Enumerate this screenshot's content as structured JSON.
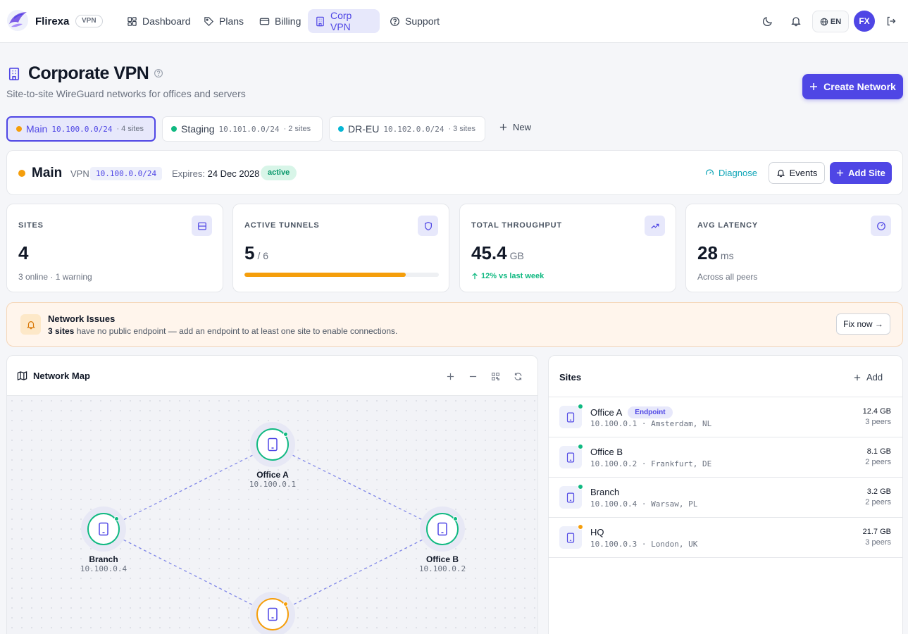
{
  "nav": {
    "brand": "Flirexa",
    "brand_badge": "VPN",
    "items": [
      {
        "label": "Dashboard",
        "icon": "dashboard-icon"
      },
      {
        "label": "Plans",
        "icon": "tag-icon"
      },
      {
        "label": "Billing",
        "icon": "card-icon"
      },
      {
        "label": "Corp VPN",
        "icon": "building-icon",
        "active": true
      },
      {
        "label": "Support",
        "icon": "help-circle-icon"
      }
    ],
    "lang": "EN",
    "avatar": "FX"
  },
  "header": {
    "title": "Corporate VPN",
    "subtitle": "Site-to-site WireGuard networks for offices and servers",
    "create_button": "Create Network"
  },
  "network_tabs": [
    {
      "name": "Main",
      "cidr": "10.100.0.0/24",
      "count": "· 4 sites",
      "color": "#f59e0b"
    },
    {
      "name": "Staging",
      "cidr": "10.101.0.0/24",
      "count": "· 2 sites",
      "color": "#10b981"
    },
    {
      "name": "DR-EU",
      "cidr": "10.102.0.0/24",
      "count": "· 3 sites",
      "color": "#06b6d4"
    }
  ],
  "new_tab_label": "New",
  "network": {
    "name": "Main",
    "vpn_label": "VPN:",
    "vpn_cidr": "10.100.0.0/24",
    "expires_label": "Expires:",
    "expires_value": "24 Dec 2028",
    "status": "active",
    "diagnose": "Diagnose",
    "events": "Events",
    "add_site": "Add Site"
  },
  "stats": {
    "sites": {
      "label": "SITES",
      "value": "4",
      "foot": "3 online · 1 warning"
    },
    "tunnels": {
      "label": "ACTIVE TUNNELS",
      "value": "5",
      "unit": "/ 6",
      "progress": 0.83
    },
    "throughput": {
      "label": "TOTAL THROUGHPUT",
      "value": "45.4",
      "unit": "GB",
      "trend": "12% vs last week"
    },
    "latency": {
      "label": "AVG LATENCY",
      "value": "28",
      "unit": "ms",
      "foot": "Across all peers"
    }
  },
  "alert": {
    "title": "Network Issues",
    "count": "3 sites",
    "text": "have no public endpoint — add an endpoint to at least one site to enable connections.",
    "button": "Fix now →"
  },
  "map": {
    "title": "Network Map",
    "nodes": [
      {
        "name": "Office A",
        "ip": "10.100.0.1",
        "status": "online"
      },
      {
        "name": "Office B",
        "ip": "10.100.0.2",
        "status": "online"
      },
      {
        "name": "Branch",
        "ip": "10.100.0.4",
        "status": "online"
      },
      {
        "name": "",
        "ip": "",
        "status": "warning"
      }
    ]
  },
  "sites": {
    "title": "Sites",
    "add": "Add",
    "rows": [
      {
        "name": "Office A",
        "badge": "Endpoint",
        "meta": "10.100.0.1 · Amsterdam, NL",
        "size": "12.4 GB",
        "peers": "3 peers",
        "status": "online"
      },
      {
        "name": "Office B",
        "meta": "10.100.0.2 · Frankfurt, DE",
        "size": "8.1 GB",
        "peers": "2 peers",
        "status": "online"
      },
      {
        "name": "Branch",
        "meta": "10.100.0.4 · Warsaw, PL",
        "size": "3.2 GB",
        "peers": "2 peers",
        "status": "online"
      },
      {
        "name": "HQ",
        "meta": "10.100.0.3 · London, UK",
        "size": "21.7 GB",
        "peers": "3 peers",
        "status": "warning"
      }
    ]
  }
}
